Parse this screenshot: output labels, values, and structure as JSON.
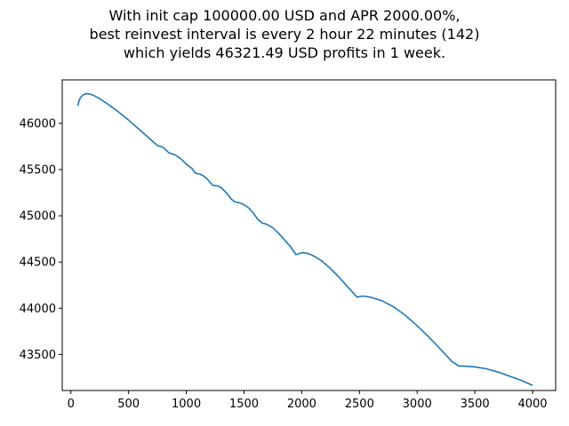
{
  "chart_data": {
    "type": "line",
    "title_lines": [
      "With init cap 100000.00 USD and APR 2000.00%,",
      "best reinvest interval is every 2 hour 22 minutes (142)",
      "which yields 46321.49 USD profits in 1 week."
    ],
    "xlabel": "",
    "ylabel": "",
    "xlim": [
      -75,
      4200
    ],
    "ylim": [
      43110,
      46470
    ],
    "x_ticks": [
      0,
      500,
      1000,
      1500,
      2000,
      2500,
      3000,
      3500,
      4000
    ],
    "x_tick_labels": [
      "0",
      "500",
      "1000",
      "1500",
      "2000",
      "2500",
      "3000",
      "3500",
      "4000"
    ],
    "y_ticks": [
      43500,
      44000,
      44500,
      45000,
      45500,
      46000
    ],
    "y_tick_labels": [
      "43500",
      "44000",
      "44500",
      "45000",
      "45500",
      "46000"
    ],
    "grid": false,
    "line_color": "#1f77b4",
    "series": [
      {
        "x": [
          60,
          70,
          80,
          90,
          100,
          110,
          120,
          130,
          142,
          160,
          180,
          200,
          250,
          300,
          350,
          400,
          450,
          500,
          550,
          600,
          650,
          700,
          750,
          800,
          850,
          900,
          950,
          1000,
          1050,
          1080,
          1100,
          1120,
          1150,
          1180,
          1200,
          1230,
          1260,
          1280,
          1300,
          1330,
          1360,
          1390,
          1420,
          1440,
          1460,
          1500,
          1540,
          1580,
          1620,
          1660,
          1680,
          1700,
          1750,
          1800,
          1850,
          1900,
          1950,
          2000,
          2020,
          2060,
          2120,
          2180,
          2240,
          2300,
          2360,
          2420,
          2480,
          2520,
          2540,
          2600,
          2700,
          2800,
          2900,
          3000,
          3100,
          3200,
          3300,
          3360,
          3400,
          3500,
          3600,
          3700,
          3800,
          3900,
          4000
        ],
        "y": [
          46190,
          46240,
          46270,
          46290,
          46300,
          46310,
          46315,
          46320,
          46321,
          46318,
          46310,
          46300,
          46265,
          46225,
          46180,
          46135,
          46085,
          46035,
          45980,
          45925,
          45870,
          45815,
          45760,
          45740,
          45680,
          45660,
          45620,
          45560,
          45510,
          45460,
          45455,
          45450,
          45430,
          45400,
          45370,
          45330,
          45325,
          45320,
          45305,
          45270,
          45230,
          45180,
          45150,
          45145,
          45140,
          45120,
          45085,
          45030,
          44960,
          44920,
          44915,
          44905,
          44870,
          44810,
          44740,
          44670,
          44580,
          44600,
          44600,
          44590,
          44555,
          44505,
          44440,
          44365,
          44285,
          44200,
          44120,
          44130,
          44130,
          44118,
          44078,
          44012,
          43920,
          43810,
          43690,
          43560,
          43425,
          43375,
          43375,
          43365,
          43345,
          43310,
          43265,
          43220,
          43165
        ]
      }
    ]
  }
}
